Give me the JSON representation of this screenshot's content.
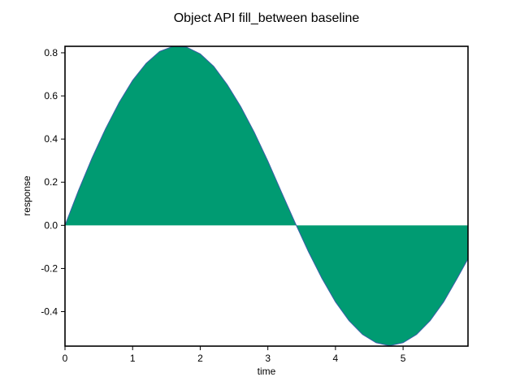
{
  "chart_data": {
    "type": "area",
    "title": "Object API fill_between baseline",
    "xlabel": "time",
    "ylabel": "response",
    "xlim": [
      0,
      5.96
    ],
    "ylim": [
      -0.56,
      0.83
    ],
    "grid": false,
    "legend": "none",
    "baseline": 0,
    "x_ticks": [
      0,
      1,
      2,
      3,
      4,
      5
    ],
    "x_tick_labels": [
      "0",
      "1",
      "2",
      "3",
      "4",
      "5"
    ],
    "y_ticks": [
      -0.4,
      -0.2,
      0.0,
      0.2,
      0.4,
      0.6,
      0.8
    ],
    "y_tick_labels": [
      "-0.4",
      "-0.2",
      "0.0",
      "0.2",
      "0.4",
      "0.6",
      "0.8"
    ],
    "series": [
      {
        "fill_color": "#009b72",
        "line_color": "#3a5fa8",
        "x": [
          0.0,
          0.2,
          0.4,
          0.6,
          0.8,
          1.0,
          1.2,
          1.4,
          1.6,
          1.8,
          2.0,
          2.2,
          2.4,
          2.6,
          2.8,
          3.0,
          3.2,
          3.4,
          3.6,
          3.8,
          4.0,
          4.2,
          4.4,
          4.6,
          4.8,
          5.0,
          5.2,
          5.4,
          5.6,
          5.8,
          5.96
        ],
        "y": [
          0.0,
          0.162,
          0.312,
          0.448,
          0.569,
          0.672,
          0.751,
          0.806,
          0.83,
          0.826,
          0.795,
          0.737,
          0.652,
          0.55,
          0.431,
          0.298,
          0.155,
          0.014,
          -0.122,
          -0.246,
          -0.355,
          -0.442,
          -0.506,
          -0.544,
          -0.558,
          -0.544,
          -0.506,
          -0.442,
          -0.355,
          -0.246,
          -0.155
        ]
      }
    ]
  }
}
